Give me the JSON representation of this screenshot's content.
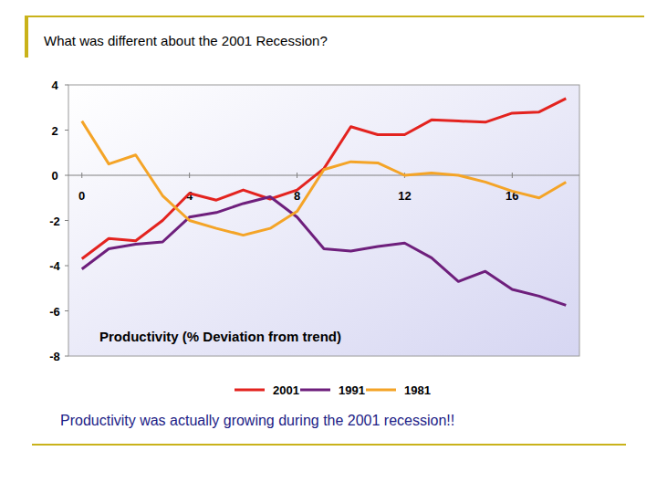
{
  "chart_data": {
    "type": "line",
    "title": "What was different about the 2001 Recession?",
    "annotations": [
      "Productivity (% Deviation from trend)",
      "Productivity was actually growing during the 2001 recession!!"
    ],
    "x": [
      0,
      1,
      2,
      3,
      4,
      5,
      6,
      7,
      8,
      9,
      10,
      11,
      12,
      13,
      14,
      15,
      16,
      17,
      18
    ],
    "xlim": [
      -0.5,
      18.5
    ],
    "xticks": [
      0,
      4,
      8,
      12,
      16
    ],
    "ylim": [
      -8,
      4
    ],
    "yticks": [
      -8,
      -6,
      -4,
      -2,
      0,
      2,
      4
    ],
    "grid": false,
    "legend": "bottom",
    "series": [
      {
        "name": "2001",
        "color": "#e3231f",
        "values": [
          -3.7,
          -2.8,
          -2.9,
          -2.0,
          -0.8,
          -1.1,
          -0.65,
          -1.05,
          -0.65,
          0.3,
          2.15,
          1.8,
          1.8,
          2.45,
          2.4,
          2.35,
          2.75,
          2.8,
          3.4
        ]
      },
      {
        "name": "1991",
        "color": "#6e1f7c",
        "values": [
          -4.15,
          -3.25,
          -3.05,
          -2.95,
          -1.85,
          -1.65,
          -1.25,
          -0.95,
          -1.85,
          -3.25,
          -3.35,
          -3.15,
          -3.0,
          -3.65,
          -4.7,
          -4.25,
          -5.05,
          -5.35,
          -5.75
        ]
      },
      {
        "name": "1981",
        "color": "#f4a427",
        "values": [
          2.4,
          0.5,
          0.9,
          -0.9,
          -2.0,
          -2.35,
          -2.65,
          -2.35,
          -1.6,
          0.25,
          0.6,
          0.55,
          0.0,
          0.1,
          0.0,
          -0.3,
          -0.7,
          -1.0,
          -0.3
        ]
      }
    ]
  }
}
